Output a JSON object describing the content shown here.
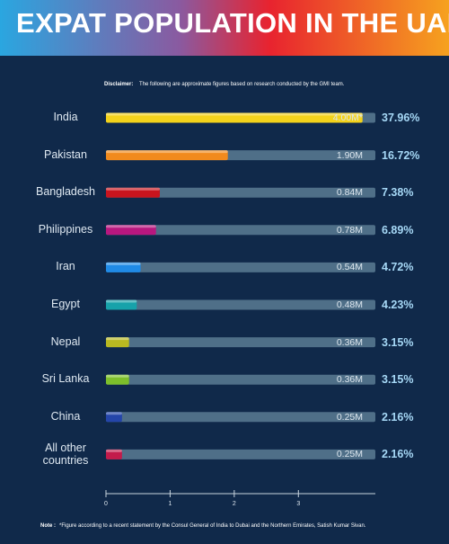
{
  "chart_data": {
    "type": "bar",
    "title": "EXPAT POPULATION IN THE UAE",
    "disclaimer_label": "Disclaimer:",
    "disclaimer_text": "The following are approximate figures based on research conducted by the GMI team.",
    "categories": [
      "India",
      "Pakistan",
      "Bangladesh",
      "Philippines",
      "Iran",
      "Egypt",
      "Nepal",
      "Sri Lanka",
      "China",
      "All other countries"
    ],
    "values": [
      4.0,
      1.9,
      0.84,
      0.78,
      0.54,
      0.48,
      0.36,
      0.36,
      0.25,
      0.25
    ],
    "value_labels": [
      "4.00M*",
      "1.90M",
      "0.84M",
      "0.78M",
      "0.54M",
      "0.48M",
      "0.36M",
      "0.36M",
      "0.25M",
      "0.25M"
    ],
    "shares": [
      37.96,
      16.72,
      7.38,
      6.89,
      4.72,
      4.23,
      3.15,
      3.15,
      2.16,
      2.16
    ],
    "share_labels": [
      "37.96%",
      "16.72%",
      "7.38%",
      "6.89%",
      "4.72%",
      "4.23%",
      "3.15%",
      "3.15%",
      "2.16%",
      "2.16%"
    ],
    "colors": [
      "#f3d21b",
      "#f18a1d",
      "#c8141e",
      "#b8177f",
      "#1f8ae6",
      "#17a2aa",
      "#b9b921",
      "#7dbf2b",
      "#2445a9",
      "#c31b4b"
    ],
    "track_color": "#4f6f88",
    "xlim": [
      0,
      4.2
    ],
    "xticks": [
      0,
      1,
      2,
      3
    ],
    "note_label": "Note :",
    "note_text": "*Figure according to a recent statement by the Consul General of India to Dubai and the Northern Emirates, Satish Kumar Sivan."
  }
}
